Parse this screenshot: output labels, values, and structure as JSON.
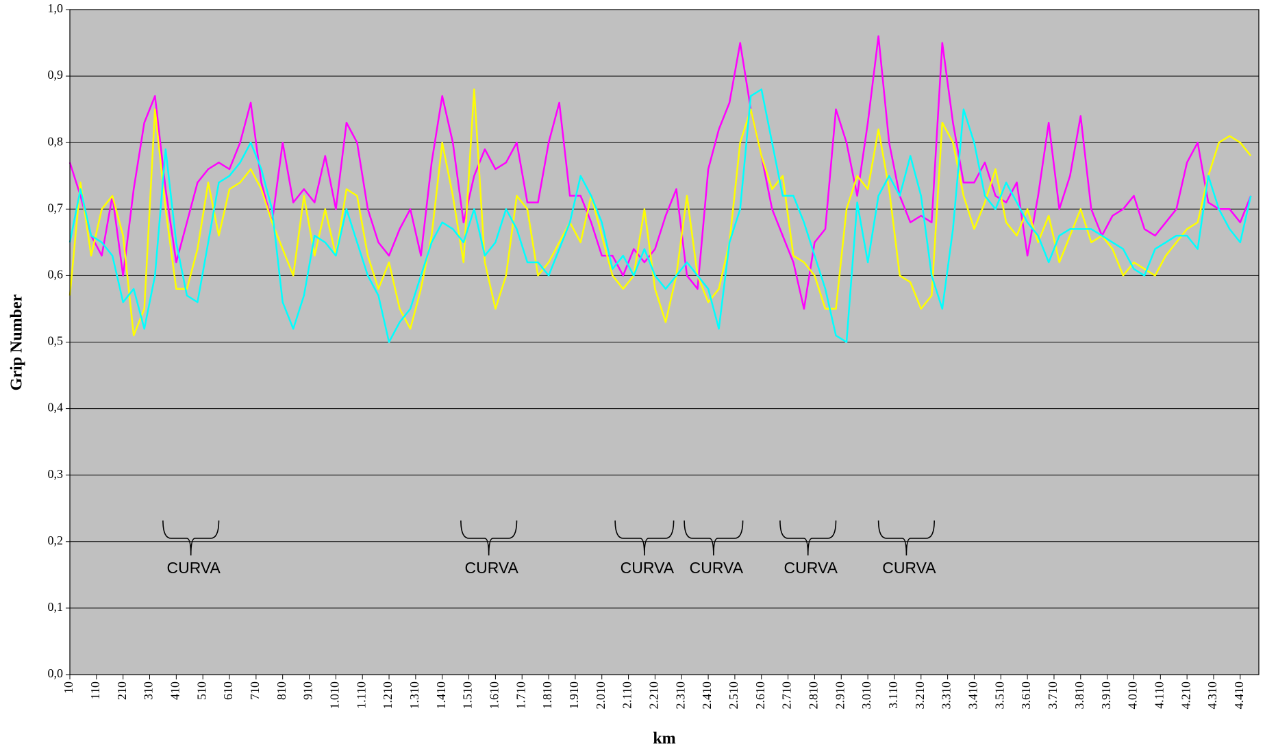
{
  "chart_data": {
    "type": "line",
    "xlabel": "km",
    "ylabel": "Grip Number",
    "xlim": [
      10,
      4480
    ],
    "ylim": [
      0,
      1
    ],
    "grid": true,
    "background": "#c0c0c0",
    "yticks": [
      {
        "value": 0,
        "label": "0,0"
      },
      {
        "value": 0.1,
        "label": "0,1"
      },
      {
        "value": 0.2,
        "label": "0,2"
      },
      {
        "value": 0.3,
        "label": "0,3"
      },
      {
        "value": 0.4,
        "label": "0,4"
      },
      {
        "value": 0.5,
        "label": "0,5"
      },
      {
        "value": 0.6,
        "label": "0,6"
      },
      {
        "value": 0.7,
        "label": "0,7"
      },
      {
        "value": 0.8,
        "label": "0,8"
      },
      {
        "value": 0.9,
        "label": "0,9"
      },
      {
        "value": 1,
        "label": "1,0"
      }
    ],
    "xticks": [
      10,
      110,
      210,
      310,
      410,
      510,
      610,
      710,
      810,
      910,
      {
        "value": 1010,
        "label": "1.010"
      },
      {
        "value": 1110,
        "label": "1.110"
      },
      {
        "value": 1210,
        "label": "1.210"
      },
      {
        "value": 1310,
        "label": "1.310"
      },
      {
        "value": 1410,
        "label": "1.410"
      },
      {
        "value": 1510,
        "label": "1.510"
      },
      {
        "value": 1610,
        "label": "1.610"
      },
      {
        "value": 1710,
        "label": "1.710"
      },
      {
        "value": 1810,
        "label": "1.810"
      },
      {
        "value": 1910,
        "label": "1.910"
      },
      {
        "value": 2010,
        "label": "2.010"
      },
      {
        "value": 2110,
        "label": "2.110"
      },
      {
        "value": 2210,
        "label": "2.210"
      },
      {
        "value": 2310,
        "label": "2.310"
      },
      {
        "value": 2410,
        "label": "2.410"
      },
      {
        "value": 2510,
        "label": "2.510"
      },
      {
        "value": 2610,
        "label": "2.610"
      },
      {
        "value": 2710,
        "label": "2.710"
      },
      {
        "value": 2810,
        "label": "2.810"
      },
      {
        "value": 2910,
        "label": "2.910"
      },
      {
        "value": 3010,
        "label": "3.010"
      },
      {
        "value": 3110,
        "label": "3.110"
      },
      {
        "value": 3210,
        "label": "3.210"
      },
      {
        "value": 3310,
        "label": "3.310"
      },
      {
        "value": 3410,
        "label": "3.410"
      },
      {
        "value": 3510,
        "label": "3.510"
      },
      {
        "value": 3610,
        "label": "3.610"
      },
      {
        "value": 3710,
        "label": "3.710"
      },
      {
        "value": 3810,
        "label": "3.810"
      },
      {
        "value": 3910,
        "label": "3.910"
      },
      {
        "value": 4010,
        "label": "4.010"
      },
      {
        "value": 4110,
        "label": "4.110"
      },
      {
        "value": 4210,
        "label": "4.210"
      },
      {
        "value": 4310,
        "label": "4.310"
      },
      {
        "value": 4410,
        "label": "4.410"
      }
    ],
    "x": [
      10,
      50,
      90,
      130,
      170,
      210,
      250,
      290,
      330,
      370,
      410,
      450,
      490,
      530,
      570,
      610,
      650,
      690,
      730,
      770,
      810,
      850,
      890,
      930,
      970,
      1010,
      1050,
      1090,
      1130,
      1170,
      1210,
      1250,
      1290,
      1330,
      1370,
      1410,
      1450,
      1490,
      1530,
      1570,
      1610,
      1650,
      1690,
      1730,
      1770,
      1810,
      1850,
      1890,
      1930,
      1970,
      2010,
      2050,
      2090,
      2130,
      2170,
      2210,
      2250,
      2290,
      2330,
      2370,
      2410,
      2450,
      2490,
      2530,
      2570,
      2610,
      2650,
      2690,
      2730,
      2770,
      2810,
      2850,
      2890,
      2930,
      2970,
      3010,
      3050,
      3090,
      3130,
      3170,
      3210,
      3250,
      3290,
      3330,
      3370,
      3410,
      3450,
      3490,
      3530,
      3570,
      3610,
      3650,
      3690,
      3730,
      3770,
      3810,
      3850,
      3890,
      3930,
      3970,
      4010,
      4050,
      4090,
      4130,
      4170,
      4210,
      4250,
      4290,
      4330,
      4370,
      4410,
      4450
    ],
    "series": [
      {
        "color": "#ff00ff",
        "values": [
          0.77,
          0.72,
          0.66,
          0.63,
          0.72,
          0.6,
          0.73,
          0.83,
          0.87,
          0.73,
          0.62,
          0.68,
          0.74,
          0.76,
          0.77,
          0.76,
          0.8,
          0.86,
          0.74,
          0.68,
          0.8,
          0.71,
          0.73,
          0.71,
          0.78,
          0.7,
          0.83,
          0.8,
          0.7,
          0.65,
          0.63,
          0.67,
          0.7,
          0.63,
          0.77,
          0.87,
          0.8,
          0.68,
          0.75,
          0.79,
          0.76,
          0.77,
          0.8,
          0.71,
          0.71,
          0.8,
          0.86,
          0.72,
          0.72,
          0.68,
          0.63,
          0.63,
          0.6,
          0.64,
          0.62,
          0.64,
          0.69,
          0.73,
          0.6,
          0.58,
          0.76,
          0.82,
          0.86,
          0.95,
          0.85,
          0.78,
          0.7,
          0.66,
          0.62,
          0.55,
          0.65,
          0.67,
          0.85,
          0.8,
          0.72,
          0.83,
          0.96,
          0.8,
          0.72,
          0.68,
          0.69,
          0.68,
          0.95,
          0.83,
          0.74,
          0.74,
          0.77,
          0.72,
          0.71,
          0.74,
          0.63,
          0.72,
          0.83,
          0.7,
          0.75,
          0.84,
          0.7,
          0.66,
          0.69,
          0.7,
          0.72,
          0.67,
          0.66,
          0.68,
          0.7,
          0.77,
          0.8,
          0.71,
          0.7,
          0.7,
          0.68,
          0.72
        ]
      },
      {
        "color": "#ffff00",
        "values": [
          0.57,
          0.74,
          0.63,
          0.7,
          0.72,
          0.66,
          0.51,
          0.55,
          0.85,
          0.7,
          0.58,
          0.58,
          0.64,
          0.74,
          0.66,
          0.73,
          0.74,
          0.76,
          0.73,
          0.68,
          0.64,
          0.6,
          0.72,
          0.63,
          0.7,
          0.63,
          0.73,
          0.72,
          0.63,
          0.58,
          0.62,
          0.55,
          0.52,
          0.58,
          0.66,
          0.8,
          0.72,
          0.62,
          0.88,
          0.62,
          0.55,
          0.6,
          0.72,
          0.7,
          0.6,
          0.62,
          0.65,
          0.68,
          0.65,
          0.72,
          0.66,
          0.6,
          0.58,
          0.6,
          0.7,
          0.58,
          0.53,
          0.6,
          0.72,
          0.6,
          0.56,
          0.58,
          0.65,
          0.8,
          0.85,
          0.78,
          0.73,
          0.75,
          0.63,
          0.62,
          0.6,
          0.55,
          0.55,
          0.7,
          0.75,
          0.73,
          0.82,
          0.73,
          0.6,
          0.59,
          0.55,
          0.57,
          0.83,
          0.8,
          0.72,
          0.67,
          0.71,
          0.76,
          0.68,
          0.66,
          0.7,
          0.65,
          0.69,
          0.62,
          0.66,
          0.7,
          0.65,
          0.66,
          0.64,
          0.6,
          0.62,
          0.61,
          0.6,
          0.63,
          0.65,
          0.67,
          0.68,
          0.75,
          0.8,
          0.81,
          0.8,
          0.78
        ]
      },
      {
        "color": "#00ffff",
        "values": [
          0.65,
          0.73,
          0.66,
          0.65,
          0.63,
          0.56,
          0.58,
          0.52,
          0.6,
          0.79,
          0.65,
          0.57,
          0.56,
          0.65,
          0.74,
          0.75,
          0.77,
          0.8,
          0.76,
          0.7,
          0.56,
          0.52,
          0.57,
          0.66,
          0.65,
          0.63,
          0.7,
          0.65,
          0.6,
          0.57,
          0.5,
          0.53,
          0.55,
          0.6,
          0.65,
          0.68,
          0.67,
          0.65,
          0.7,
          0.63,
          0.65,
          0.7,
          0.67,
          0.62,
          0.62,
          0.6,
          0.64,
          0.68,
          0.75,
          0.72,
          0.68,
          0.61,
          0.63,
          0.6,
          0.64,
          0.6,
          0.58,
          0.6,
          0.62,
          0.6,
          0.58,
          0.52,
          0.65,
          0.7,
          0.87,
          0.88,
          0.8,
          0.72,
          0.72,
          0.68,
          0.63,
          0.58,
          0.51,
          0.5,
          0.71,
          0.62,
          0.72,
          0.75,
          0.72,
          0.78,
          0.72,
          0.6,
          0.55,
          0.67,
          0.85,
          0.8,
          0.72,
          0.7,
          0.74,
          0.71,
          0.68,
          0.66,
          0.62,
          0.66,
          0.67,
          0.67,
          0.67,
          0.66,
          0.65,
          0.64,
          0.61,
          0.6,
          0.64,
          0.65,
          0.66,
          0.66,
          0.64,
          0.75,
          0.7,
          0.67,
          0.65,
          0.72
        ]
      }
    ],
    "annotations": [
      {
        "text": "CURVA",
        "x_start": 360,
        "x_end": 570
      },
      {
        "text": "CURVA",
        "x_start": 1480,
        "x_end": 1690
      },
      {
        "text": "CURVA",
        "x_start": 2060,
        "x_end": 2280
      },
      {
        "text": "CURVA",
        "x_start": 2320,
        "x_end": 2540
      },
      {
        "text": "CURVA",
        "x_start": 2680,
        "x_end": 2890
      },
      {
        "text": "CURVA",
        "x_start": 3050,
        "x_end": 3260
      }
    ]
  }
}
